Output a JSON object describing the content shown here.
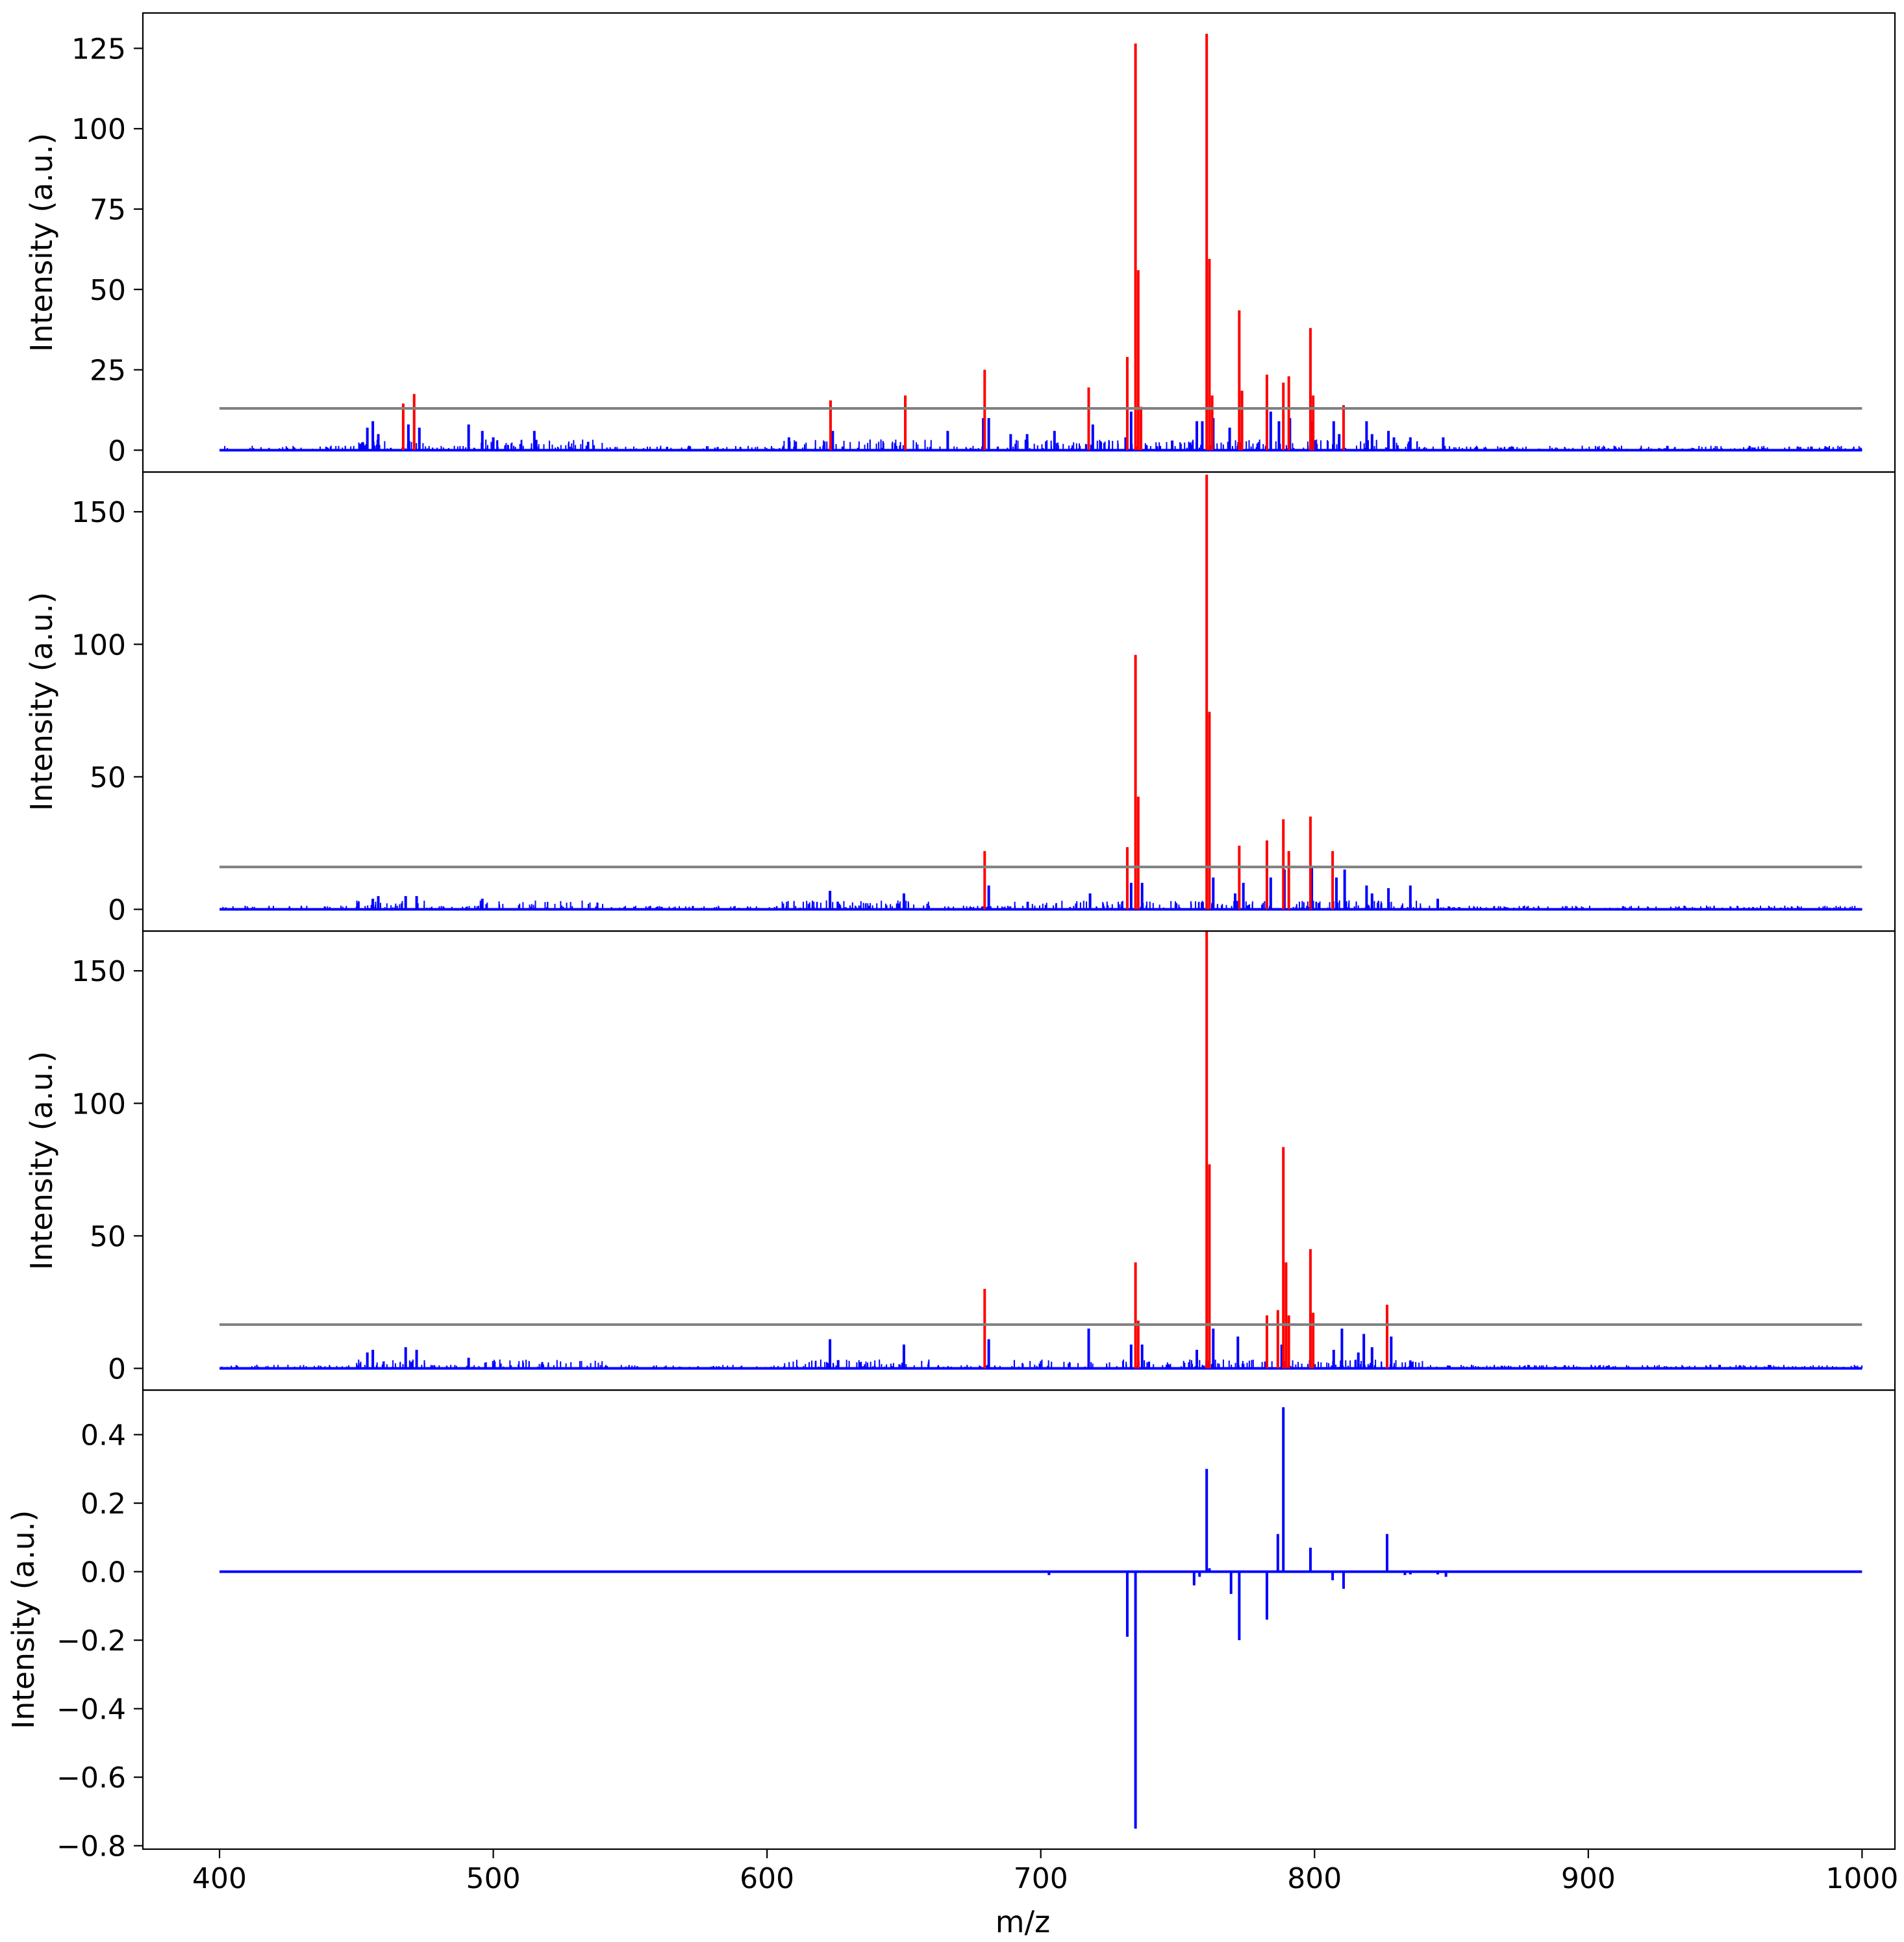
{
  "chart_data": [
    {
      "type": "bar",
      "ylabel": "Intensity (a.u.)",
      "yticks": [
        0,
        25,
        50,
        75,
        100,
        125
      ],
      "ylim": [
        -6.8,
        136
      ],
      "threshold": 13,
      "peaks_above_threshold": [
        [
          467.1,
          14.5
        ],
        [
          471.1,
          17.5
        ],
        [
          623.2,
          15.5
        ],
        [
          650.5,
          17
        ],
        [
          679.5,
          25
        ],
        [
          717.5,
          19.5
        ],
        [
          731.6,
          29
        ],
        [
          734.6,
          126.5
        ],
        [
          735.6,
          56
        ],
        [
          736.6,
          13.5
        ],
        [
          760.6,
          129.5
        ],
        [
          761.6,
          59.5
        ],
        [
          762.6,
          17
        ],
        [
          772.5,
          43.5
        ],
        [
          773.5,
          18.5
        ],
        [
          782.6,
          23.5
        ],
        [
          788.6,
          21
        ],
        [
          790.6,
          23
        ],
        [
          798.5,
          38
        ],
        [
          799.5,
          17
        ],
        [
          810.6,
          14
        ]
      ],
      "peaks_below_threshold": [
        [
          454,
          7
        ],
        [
          456,
          9
        ],
        [
          458,
          5
        ],
        [
          469,
          8
        ],
        [
          473,
          7
        ],
        [
          491,
          8
        ],
        [
          496,
          6
        ],
        [
          500,
          4
        ],
        [
          515,
          6
        ],
        [
          608,
          4
        ],
        [
          624,
          6
        ],
        [
          666,
          6
        ],
        [
          679,
          10
        ],
        [
          681,
          10
        ],
        [
          689,
          5
        ],
        [
          695,
          5
        ],
        [
          705,
          6
        ],
        [
          719,
          8
        ],
        [
          731,
          4
        ],
        [
          733,
          12
        ],
        [
          748,
          3
        ],
        [
          757,
          9
        ],
        [
          759,
          9
        ],
        [
          763,
          10
        ],
        [
          769,
          7
        ],
        [
          784,
          12
        ],
        [
          787,
          9
        ],
        [
          791,
          10
        ],
        [
          799,
          9
        ],
        [
          807,
          9
        ],
        [
          809,
          5
        ],
        [
          819,
          9
        ],
        [
          821,
          5
        ],
        [
          827,
          6
        ],
        [
          829,
          4
        ],
        [
          835,
          4
        ],
        [
          847,
          4
        ]
      ],
      "xlim": [
        372,
        1012
      ]
    },
    {
      "type": "bar",
      "ylabel": "Intensity (a.u.)",
      "yticks": [
        0,
        50,
        100,
        150
      ],
      "ylim": [
        -8.2,
        165
      ],
      "threshold": 16,
      "peaks_above_threshold": [
        [
          679.5,
          22
        ],
        [
          731.6,
          23.5
        ],
        [
          734.6,
          96
        ],
        [
          735.6,
          42.5
        ],
        [
          760.6,
          164
        ],
        [
          761.6,
          74.5
        ],
        [
          772.5,
          24
        ],
        [
          782.6,
          26
        ],
        [
          788.6,
          34
        ],
        [
          790.6,
          22
        ],
        [
          798.5,
          35
        ],
        [
          806.6,
          22
        ]
      ],
      "peaks_below_threshold": [
        [
          456,
          4
        ],
        [
          458,
          5
        ],
        [
          468,
          5
        ],
        [
          472,
          5
        ],
        [
          496,
          4
        ],
        [
          623,
          7
        ],
        [
          650,
          6
        ],
        [
          681,
          9
        ],
        [
          718,
          6
        ],
        [
          733,
          10
        ],
        [
          737,
          10
        ],
        [
          763,
          12
        ],
        [
          771,
          6
        ],
        [
          774,
          10
        ],
        [
          784,
          12
        ],
        [
          789,
          15
        ],
        [
          799,
          16
        ],
        [
          808,
          12
        ],
        [
          811,
          15
        ],
        [
          819,
          9
        ],
        [
          821,
          6
        ],
        [
          827,
          8
        ],
        [
          835,
          9
        ],
        [
          845,
          4
        ]
      ],
      "xlim": [
        372,
        1012
      ]
    },
    {
      "type": "bar",
      "ylabel": "Intensity (a.u.)",
      "yticks": [
        0,
        50,
        100,
        150
      ],
      "ylim": [
        -8.2,
        165
      ],
      "threshold": 16.5,
      "peaks_above_threshold": [
        [
          679.5,
          30
        ],
        [
          734.6,
          40
        ],
        [
          735.6,
          18
        ],
        [
          760.6,
          165
        ],
        [
          761.6,
          77
        ],
        [
          782.6,
          20
        ],
        [
          786.6,
          22
        ],
        [
          788.6,
          83.5
        ],
        [
          789.6,
          40
        ],
        [
          790.6,
          20
        ],
        [
          798.5,
          45
        ],
        [
          799.5,
          21
        ],
        [
          826.5,
          24
        ]
      ],
      "peaks_below_threshold": [
        [
          454,
          6
        ],
        [
          456,
          7
        ],
        [
          468,
          8
        ],
        [
          472,
          7
        ],
        [
          491,
          4
        ],
        [
          623,
          11
        ],
        [
          650,
          9
        ],
        [
          681,
          11
        ],
        [
          717.5,
          15
        ],
        [
          733,
          9
        ],
        [
          737,
          9
        ],
        [
          757,
          7
        ],
        [
          763,
          15
        ],
        [
          772,
          12
        ],
        [
          788,
          9
        ],
        [
          807,
          7
        ],
        [
          810,
          15
        ],
        [
          816,
          6
        ],
        [
          818,
          13
        ],
        [
          821,
          8
        ],
        [
          828,
          12
        ],
        [
          835,
          3
        ]
      ],
      "xlim": [
        372,
        1012
      ]
    },
    {
      "type": "bar",
      "ylabel": "Intensity (a.u.)",
      "xlabel": "m/z",
      "yticks": [
        0.4,
        0.2,
        0.0,
        -0.2,
        -0.4,
        -0.6,
        -0.8
      ],
      "ytick_labels": [
        "0.4",
        "0.2",
        "0.0",
        "−0.2",
        "−0.4",
        "−0.6",
        "−0.8"
      ],
      "xticks": [
        400,
        500,
        600,
        700,
        800,
        900,
        1000
      ],
      "ylim": [
        -0.81,
        0.53
      ],
      "peaks": [
        [
          703,
          -0.01
        ],
        [
          731.6,
          -0.19
        ],
        [
          734.6,
          -0.75
        ],
        [
          756,
          -0.04
        ],
        [
          758,
          -0.015
        ],
        [
          760.6,
          0.3
        ],
        [
          761.6,
          0.01
        ],
        [
          769.5,
          -0.065
        ],
        [
          772.5,
          -0.2
        ],
        [
          782.6,
          -0.14
        ],
        [
          786.6,
          0.11
        ],
        [
          788.6,
          0.48
        ],
        [
          798.5,
          0.07
        ],
        [
          806.6,
          -0.025
        ],
        [
          810.6,
          -0.05
        ],
        [
          826.5,
          0.11
        ],
        [
          833,
          -0.01
        ],
        [
          835,
          -0.008
        ],
        [
          845,
          -0.008
        ],
        [
          848,
          -0.015
        ]
      ],
      "xlim": [
        372,
        1012
      ]
    }
  ],
  "colors": {
    "signal": "#0000ff",
    "above_threshold": "#ff0000",
    "threshold_line": "#808080",
    "axes": "#000000"
  }
}
